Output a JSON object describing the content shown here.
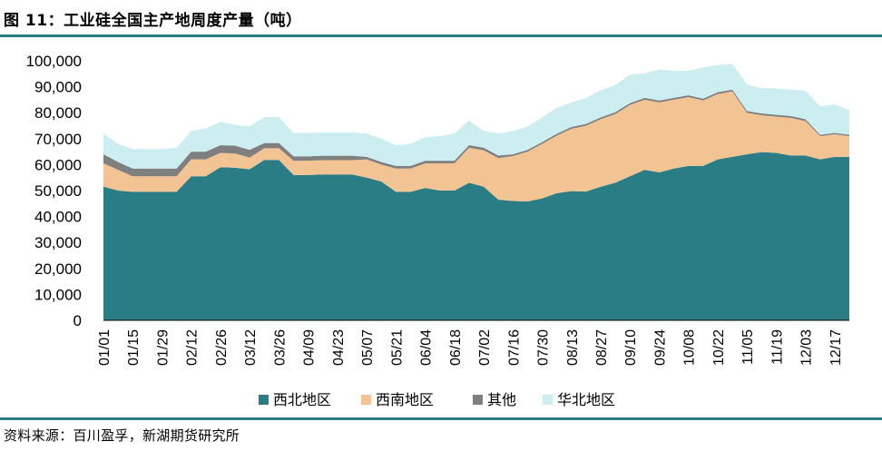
{
  "title": "图 11：工业硅全国主产地周度产量（吨）",
  "source": "资料来源：百川盈孚，新湖期货研究所",
  "colors": {
    "rule": "#2a7d85",
    "northwest": "#2a7d85",
    "southwest": "#f2c494",
    "other": "#7f7f7f",
    "northchina": "#cdeef1"
  },
  "chart_data": {
    "type": "area",
    "stacked": true,
    "title": "",
    "xlabel": "",
    "ylabel": "",
    "ylim": [
      0,
      100000
    ],
    "yticks": [
      "0",
      "10,000",
      "20,000",
      "30,000",
      "40,000",
      "50,000",
      "60,000",
      "70,000",
      "80,000",
      "90,000",
      "100,000"
    ],
    "x": [
      "01/01",
      "01/08",
      "01/15",
      "01/22",
      "01/29",
      "02/05",
      "02/12",
      "02/19",
      "02/26",
      "03/05",
      "03/12",
      "03/19",
      "03/26",
      "04/02",
      "04/09",
      "04/16",
      "04/23",
      "04/30",
      "05/07",
      "05/14",
      "05/21",
      "05/28",
      "06/04",
      "06/11",
      "06/18",
      "06/25",
      "07/02",
      "07/09",
      "07/16",
      "07/23",
      "07/30",
      "08/06",
      "08/13",
      "08/20",
      "08/27",
      "09/03",
      "09/10",
      "09/17",
      "09/24",
      "10/01",
      "10/08",
      "10/15",
      "10/22",
      "10/29",
      "11/05",
      "11/12",
      "11/19",
      "11/26",
      "12/03",
      "12/10",
      "12/17",
      "12/24"
    ],
    "xticks": [
      "01/01",
      "01/15",
      "01/29",
      "02/12",
      "02/26",
      "03/12",
      "03/26",
      "04/09",
      "04/23",
      "05/07",
      "05/21",
      "06/04",
      "06/18",
      "07/02",
      "07/16",
      "07/30",
      "08/13",
      "08/27",
      "09/10",
      "09/24",
      "10/08",
      "10/22",
      "11/05",
      "11/19",
      "12/03",
      "12/17"
    ],
    "legend_position": "bottom",
    "series": [
      {
        "name": "西北地区",
        "color": "#2a7d85",
        "values": [
          51500,
          50000,
          49500,
          49500,
          49500,
          49500,
          55500,
          55500,
          59000,
          58800,
          58200,
          61800,
          61800,
          56000,
          56000,
          56200,
          56200,
          56200,
          55000,
          53500,
          49500,
          49500,
          51000,
          50000,
          50000,
          53000,
          51500,
          46500,
          46000,
          45800,
          47000,
          49000,
          49800,
          49600,
          51500,
          53000,
          55500,
          58000,
          57000,
          58500,
          59500,
          59500,
          62000,
          63000,
          64000,
          64800,
          64500,
          63500,
          63500,
          62000,
          63000,
          63000
        ]
      },
      {
        "name": "西南地区",
        "color": "#f2c494",
        "values": [
          9000,
          8000,
          6000,
          6000,
          6000,
          6000,
          6500,
          6500,
          5500,
          5500,
          4500,
          4500,
          4500,
          5500,
          5500,
          5500,
          5500,
          5500,
          7000,
          6500,
          9000,
          9000,
          9500,
          10500,
          10500,
          13500,
          14000,
          16000,
          17300,
          19200,
          21000,
          22200,
          24000,
          25400,
          26000,
          26500,
          27500,
          27000,
          27000,
          26500,
          26500,
          25200,
          25200,
          25200,
          16000,
          14200,
          14000,
          14500,
          13300,
          9000,
          8700,
          8000
        ]
      },
      {
        "name": "其他",
        "color": "#7f7f7f",
        "values": [
          3500,
          3000,
          3000,
          3000,
          3000,
          3000,
          3000,
          3000,
          3000,
          3000,
          3000,
          2000,
          2000,
          1700,
          1700,
          1700,
          1700,
          1700,
          1000,
          1000,
          1000,
          1000,
          1000,
          1000,
          1000,
          1000,
          1000,
          1000,
          700,
          700,
          700,
          700,
          700,
          700,
          700,
          700,
          700,
          700,
          700,
          700,
          700,
          700,
          700,
          700,
          700,
          700,
          700,
          700,
          700,
          500,
          500,
          500
        ]
      },
      {
        "name": "华北地区",
        "color": "#cdeef1",
        "values": [
          8000,
          7000,
          7500,
          7500,
          7500,
          8000,
          8000,
          9000,
          9000,
          8000,
          9000,
          10000,
          10000,
          9000,
          9000,
          9000,
          9000,
          9000,
          9000,
          9000,
          8000,
          8500,
          9000,
          9500,
          10500,
          9500,
          6500,
          8500,
          9000,
          9000,
          9500,
          10000,
          9500,
          10000,
          10500,
          10500,
          11000,
          9500,
          12000,
          10500,
          9500,
          12000,
          10500,
          9900,
          10200,
          9800,
          10200,
          10200,
          11000,
          11000,
          11000,
          9500
        ]
      }
    ]
  }
}
